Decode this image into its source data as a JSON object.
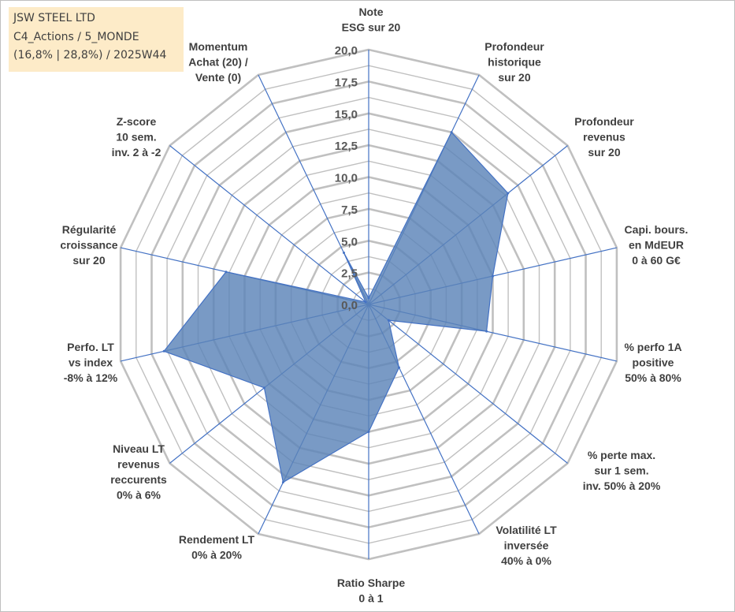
{
  "info_box": {
    "line1": "JSW STEEL LTD",
    "line2": "C4_Actions / 5_MONDE",
    "line3": "(16,8% | 28,8%) / 2025W44"
  },
  "colors": {
    "fill": "#5b84b8",
    "stroke": "#4472c4",
    "grid": "#c0c0c0",
    "axis": "#4472c4",
    "info_bg": "#fdebc8"
  },
  "chart_data": {
    "type": "radar",
    "title": "",
    "axes": [
      [
        "Note",
        "ESG sur 20"
      ],
      [
        "Profondeur",
        "historique",
        "sur 20"
      ],
      [
        "Profondeur",
        "revenus",
        "sur 20"
      ],
      [
        "Capi. bours.",
        "en MdEUR",
        "0 à 60 G€"
      ],
      [
        "% perfo 1A",
        "positive",
        "50% à 80%"
      ],
      [
        "% perte max.",
        "sur 1 sem.",
        "inv. 50% à 20%"
      ],
      [
        "Volatilité LT",
        "inversée",
        "40% à 0%"
      ],
      [
        "Ratio Sharpe",
        "0 à 1"
      ],
      [
        "Rendement LT",
        "0% à 20%"
      ],
      [
        "Niveau LT",
        "revenus",
        "reccurents",
        "0% à 6%"
      ],
      [
        "Perfo. LT",
        "vs index",
        "-8% à 12%"
      ],
      [
        "Régularité",
        "croissance",
        "sur 20"
      ],
      [
        "Z-score",
        "10 sem.",
        "inv. 2 à -2"
      ],
      [
        "Momentum",
        "Achat (20) /",
        "Vente (0)"
      ]
    ],
    "values": [
      0.5,
      15.0,
      14.0,
      10.0,
      9.5,
      2.0,
      5.5,
      10.0,
      15.5,
      10.5,
      16.5,
      11.5,
      0.3,
      4.5
    ],
    "rlim": [
      0,
      20
    ],
    "ticks": [
      "0,0",
      "2,5",
      "5,0",
      "7,5",
      "10,0",
      "12,5",
      "15,0",
      "17,5",
      "20,0"
    ],
    "gridlines": true,
    "legend": "none"
  }
}
